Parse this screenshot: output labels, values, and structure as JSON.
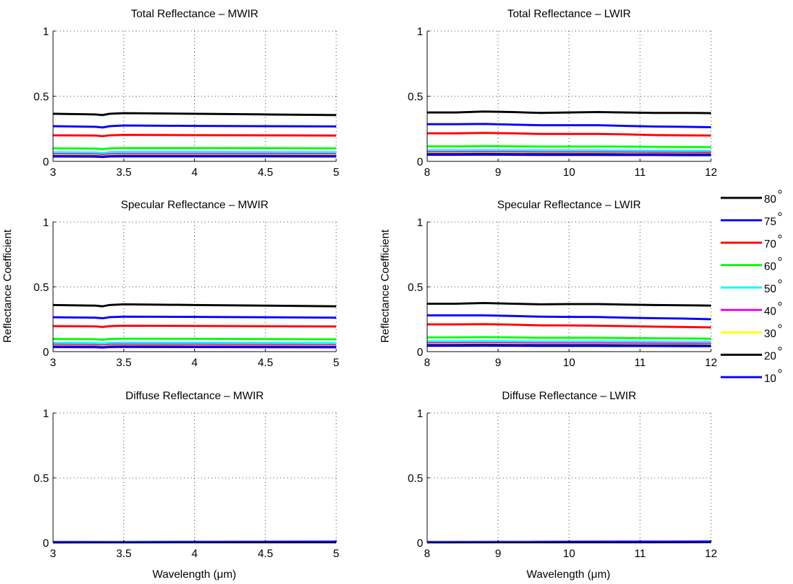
{
  "figure": {
    "ylabel": "Reflectance Coefficient",
    "xlabel": "Wavelength (μm)"
  },
  "legend": {
    "placement": "right",
    "entries": [
      {
        "label": "80",
        "color": "#000000"
      },
      {
        "label": "75",
        "color": "#0000ff"
      },
      {
        "label": "70",
        "color": "#ff0000"
      },
      {
        "label": "60",
        "color": "#00ff00"
      },
      {
        "label": "50",
        "color": "#00ffff"
      },
      {
        "label": "40",
        "color": "#ff00ff"
      },
      {
        "label": "30",
        "color": "#ffff00"
      },
      {
        "label": "20",
        "color": "#000000"
      },
      {
        "label": "10",
        "color": "#0000ff"
      }
    ]
  },
  "chart_data": [
    {
      "type": "line",
      "title": "Total Reflectance – MWIR",
      "xlim": [
        3,
        5
      ],
      "ylim": [
        0,
        1
      ],
      "xticks": [
        "3",
        "3.5",
        "4",
        "4.5",
        "5"
      ],
      "yticks": [
        "0",
        "0.5",
        "1"
      ],
      "grid": true,
      "x": [
        3.0,
        3.3,
        3.35,
        3.4,
        3.5,
        4.0,
        4.5,
        5.0
      ],
      "series": [
        {
          "name": "80",
          "values": [
            0.365,
            0.36,
            0.355,
            0.365,
            0.37,
            0.365,
            0.36,
            0.355
          ]
        },
        {
          "name": "75",
          "values": [
            0.27,
            0.265,
            0.26,
            0.27,
            0.275,
            0.272,
            0.27,
            0.268
          ]
        },
        {
          "name": "70",
          "values": [
            0.2,
            0.198,
            0.193,
            0.2,
            0.203,
            0.201,
            0.2,
            0.198
          ]
        },
        {
          "name": "60",
          "values": [
            0.1,
            0.098,
            0.093,
            0.1,
            0.102,
            0.102,
            0.101,
            0.1
          ]
        },
        {
          "name": "50",
          "values": [
            0.07,
            0.068,
            0.064,
            0.07,
            0.072,
            0.072,
            0.071,
            0.07
          ]
        },
        {
          "name": "40",
          "values": [
            0.055,
            0.053,
            0.05,
            0.055,
            0.056,
            0.056,
            0.056,
            0.055
          ]
        },
        {
          "name": "30",
          "values": [
            0.045,
            0.044,
            0.041,
            0.045,
            0.046,
            0.046,
            0.046,
            0.045
          ]
        },
        {
          "name": "20",
          "values": [
            0.04,
            0.039,
            0.036,
            0.04,
            0.041,
            0.041,
            0.041,
            0.04
          ]
        },
        {
          "name": "10",
          "values": [
            0.037,
            0.036,
            0.033,
            0.037,
            0.038,
            0.038,
            0.038,
            0.037
          ]
        }
      ]
    },
    {
      "type": "line",
      "title": "Total Reflectance – LWIR",
      "xlim": [
        8,
        12
      ],
      "ylim": [
        0,
        1
      ],
      "xticks": [
        "8",
        "9",
        "10",
        "11",
        "12"
      ],
      "yticks": [
        "0",
        "0.5",
        "1"
      ],
      "grid": true,
      "x": [
        8.0,
        8.4,
        8.8,
        9.2,
        9.6,
        10.0,
        10.4,
        10.8,
        11.2,
        11.6,
        12.0
      ],
      "series": [
        {
          "name": "80",
          "values": [
            0.375,
            0.375,
            0.382,
            0.378,
            0.372,
            0.375,
            0.378,
            0.375,
            0.372,
            0.372,
            0.37
          ]
        },
        {
          "name": "75",
          "values": [
            0.285,
            0.285,
            0.287,
            0.282,
            0.277,
            0.277,
            0.277,
            0.272,
            0.267,
            0.265,
            0.262
          ]
        },
        {
          "name": "70",
          "values": [
            0.215,
            0.215,
            0.218,
            0.215,
            0.21,
            0.21,
            0.21,
            0.207,
            0.202,
            0.2,
            0.198
          ]
        },
        {
          "name": "60",
          "values": [
            0.115,
            0.115,
            0.117,
            0.116,
            0.114,
            0.114,
            0.114,
            0.113,
            0.111,
            0.11,
            0.11
          ]
        },
        {
          "name": "50",
          "values": [
            0.085,
            0.085,
            0.086,
            0.085,
            0.084,
            0.084,
            0.084,
            0.083,
            0.082,
            0.081,
            0.08
          ]
        },
        {
          "name": "40",
          "values": [
            0.07,
            0.07,
            0.071,
            0.07,
            0.069,
            0.069,
            0.069,
            0.068,
            0.067,
            0.066,
            0.066
          ]
        },
        {
          "name": "30",
          "values": [
            0.06,
            0.06,
            0.061,
            0.06,
            0.059,
            0.059,
            0.059,
            0.058,
            0.057,
            0.057,
            0.056
          ]
        },
        {
          "name": "20",
          "values": [
            0.055,
            0.055,
            0.056,
            0.055,
            0.054,
            0.054,
            0.054,
            0.053,
            0.053,
            0.052,
            0.052
          ]
        },
        {
          "name": "10",
          "values": [
            0.05,
            0.05,
            0.051,
            0.05,
            0.049,
            0.049,
            0.049,
            0.048,
            0.048,
            0.047,
            0.047
          ]
        }
      ]
    },
    {
      "type": "line",
      "title": "Specular Reflectance – MWIR",
      "xlim": [
        3,
        5
      ],
      "ylim": [
        0,
        1
      ],
      "xticks": [
        "3",
        "3.5",
        "4",
        "4.5",
        "5"
      ],
      "yticks": [
        "0",
        "0.5",
        "1"
      ],
      "grid": true,
      "x": [
        3.0,
        3.3,
        3.35,
        3.4,
        3.5,
        4.0,
        4.5,
        5.0
      ],
      "series": [
        {
          "name": "80",
          "values": [
            0.36,
            0.355,
            0.35,
            0.36,
            0.365,
            0.36,
            0.355,
            0.35
          ]
        },
        {
          "name": "75",
          "values": [
            0.265,
            0.262,
            0.257,
            0.266,
            0.27,
            0.268,
            0.265,
            0.262
          ]
        },
        {
          "name": "70",
          "values": [
            0.197,
            0.195,
            0.19,
            0.197,
            0.2,
            0.198,
            0.196,
            0.194
          ]
        },
        {
          "name": "60",
          "values": [
            0.098,
            0.096,
            0.091,
            0.098,
            0.1,
            0.099,
            0.097,
            0.095
          ]
        },
        {
          "name": "50",
          "values": [
            0.068,
            0.066,
            0.062,
            0.068,
            0.07,
            0.069,
            0.067,
            0.065
          ]
        },
        {
          "name": "40",
          "values": [
            0.053,
            0.051,
            0.048,
            0.053,
            0.054,
            0.053,
            0.052,
            0.05
          ]
        },
        {
          "name": "30",
          "values": [
            0.043,
            0.042,
            0.039,
            0.043,
            0.044,
            0.043,
            0.042,
            0.041
          ]
        },
        {
          "name": "20",
          "values": [
            0.038,
            0.037,
            0.034,
            0.038,
            0.039,
            0.038,
            0.037,
            0.036
          ]
        },
        {
          "name": "10",
          "values": [
            0.035,
            0.034,
            0.031,
            0.035,
            0.036,
            0.035,
            0.034,
            0.033
          ]
        }
      ]
    },
    {
      "type": "line",
      "title": "Specular Reflectance – LWIR",
      "xlim": [
        8,
        12
      ],
      "ylim": [
        0,
        1
      ],
      "xticks": [
        "8",
        "9",
        "10",
        "11",
        "12"
      ],
      "yticks": [
        "0",
        "0.5",
        "1"
      ],
      "grid": true,
      "x": [
        8.0,
        8.4,
        8.8,
        9.2,
        9.6,
        10.0,
        10.4,
        10.8,
        11.2,
        11.6,
        12.0
      ],
      "series": [
        {
          "name": "80",
          "values": [
            0.37,
            0.37,
            0.375,
            0.37,
            0.365,
            0.367,
            0.367,
            0.363,
            0.36,
            0.358,
            0.355
          ]
        },
        {
          "name": "75",
          "values": [
            0.28,
            0.28,
            0.28,
            0.275,
            0.27,
            0.268,
            0.267,
            0.262,
            0.258,
            0.255,
            0.25
          ]
        },
        {
          "name": "70",
          "values": [
            0.21,
            0.21,
            0.212,
            0.208,
            0.203,
            0.202,
            0.2,
            0.197,
            0.193,
            0.19,
            0.187
          ]
        },
        {
          "name": "60",
          "values": [
            0.11,
            0.11,
            0.112,
            0.11,
            0.107,
            0.107,
            0.107,
            0.105,
            0.103,
            0.102,
            0.1
          ]
        },
        {
          "name": "50",
          "values": [
            0.08,
            0.08,
            0.081,
            0.08,
            0.078,
            0.078,
            0.078,
            0.077,
            0.075,
            0.074,
            0.073
          ]
        },
        {
          "name": "40",
          "values": [
            0.065,
            0.065,
            0.066,
            0.065,
            0.064,
            0.064,
            0.064,
            0.063,
            0.062,
            0.061,
            0.06
          ]
        },
        {
          "name": "30",
          "values": [
            0.055,
            0.055,
            0.056,
            0.055,
            0.054,
            0.054,
            0.054,
            0.053,
            0.052,
            0.052,
            0.051
          ]
        },
        {
          "name": "20",
          "values": [
            0.05,
            0.05,
            0.051,
            0.05,
            0.049,
            0.049,
            0.049,
            0.048,
            0.047,
            0.047,
            0.046
          ]
        },
        {
          "name": "10",
          "values": [
            0.045,
            0.045,
            0.046,
            0.045,
            0.044,
            0.044,
            0.044,
            0.043,
            0.043,
            0.042,
            0.042
          ]
        }
      ]
    },
    {
      "type": "line",
      "title": "Diffuse Reflectance – MWIR",
      "xlim": [
        3,
        5
      ],
      "ylim": [
        0,
        1
      ],
      "xticks": [
        "3",
        "3.5",
        "4",
        "4.5",
        "5"
      ],
      "yticks": [
        "0",
        "0.5",
        "1"
      ],
      "grid": true,
      "x": [
        3.0,
        3.5,
        4.0,
        4.5,
        5.0
      ],
      "series": [
        {
          "name": "80",
          "values": [
            0.004,
            0.005,
            0.006,
            0.006,
            0.007
          ]
        },
        {
          "name": "75",
          "values": [
            0.004,
            0.005,
            0.006,
            0.006,
            0.007
          ]
        },
        {
          "name": "70",
          "values": [
            0.003,
            0.004,
            0.005,
            0.006,
            0.006
          ]
        },
        {
          "name": "60",
          "values": [
            0.003,
            0.004,
            0.004,
            0.005,
            0.005
          ]
        },
        {
          "name": "50",
          "values": [
            0.002,
            0.003,
            0.004,
            0.004,
            0.005
          ]
        },
        {
          "name": "40",
          "values": [
            0.002,
            0.003,
            0.003,
            0.004,
            0.004
          ]
        },
        {
          "name": "30",
          "values": [
            0.002,
            0.002,
            0.003,
            0.003,
            0.004
          ]
        },
        {
          "name": "20",
          "values": [
            0.002,
            0.002,
            0.003,
            0.003,
            0.003
          ]
        },
        {
          "name": "10",
          "values": [
            0.002,
            0.003,
            0.004,
            0.005,
            0.006
          ]
        }
      ]
    },
    {
      "type": "line",
      "title": "Diffuse Reflectance – LWIR",
      "xlim": [
        8,
        12
      ],
      "ylim": [
        0,
        1
      ],
      "xticks": [
        "8",
        "9",
        "10",
        "11",
        "12"
      ],
      "yticks": [
        "0",
        "0.5",
        "1"
      ],
      "grid": true,
      "x": [
        8.0,
        9.0,
        10.0,
        11.0,
        12.0
      ],
      "series": [
        {
          "name": "80",
          "values": [
            0.004,
            0.005,
            0.006,
            0.007,
            0.008
          ]
        },
        {
          "name": "75",
          "values": [
            0.004,
            0.005,
            0.006,
            0.007,
            0.008
          ]
        },
        {
          "name": "70",
          "values": [
            0.004,
            0.005,
            0.005,
            0.006,
            0.007
          ]
        },
        {
          "name": "60",
          "values": [
            0.003,
            0.004,
            0.005,
            0.005,
            0.006
          ]
        },
        {
          "name": "50",
          "values": [
            0.003,
            0.004,
            0.004,
            0.005,
            0.005
          ]
        },
        {
          "name": "40",
          "values": [
            0.003,
            0.003,
            0.004,
            0.004,
            0.005
          ]
        },
        {
          "name": "30",
          "values": [
            0.002,
            0.003,
            0.003,
            0.004,
            0.004
          ]
        },
        {
          "name": "20",
          "values": [
            0.002,
            0.003,
            0.003,
            0.003,
            0.004
          ]
        },
        {
          "name": "10",
          "values": [
            0.003,
            0.005,
            0.006,
            0.007,
            0.009
          ]
        }
      ]
    }
  ]
}
